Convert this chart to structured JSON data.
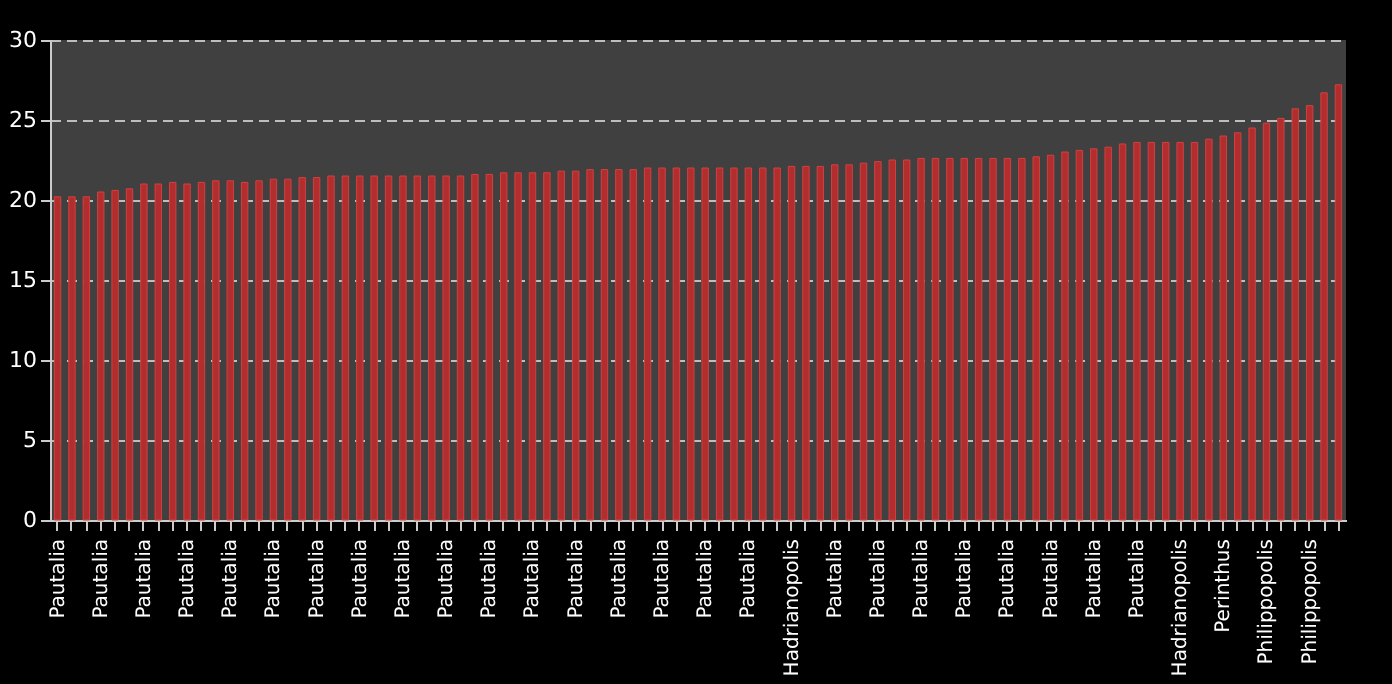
{
  "chart_data": {
    "type": "bar",
    "categories": [
      "Pautalia",
      null,
      null,
      "Pautalia",
      null,
      null,
      "Pautalia",
      null,
      null,
      "Pautalia",
      null,
      null,
      "Pautalia",
      null,
      null,
      "Pautalia",
      null,
      null,
      "Pautalia",
      null,
      null,
      "Pautalia",
      null,
      null,
      "Pautalia",
      null,
      null,
      "Pautalia",
      null,
      null,
      "Pautalia",
      null,
      null,
      "Pautalia",
      null,
      null,
      "Pautalia",
      null,
      null,
      "Pautalia",
      null,
      null,
      "Pautalia",
      null,
      null,
      "Pautalia",
      null,
      null,
      "Pautalia",
      null,
      null,
      "Hadrianopolis",
      null,
      null,
      "Pautalia",
      null,
      null,
      "Pautalia",
      null,
      null,
      "Pautalia",
      null,
      null,
      "Pautalia",
      null,
      null,
      "Pautalia",
      null,
      null,
      "Pautalia",
      null,
      null,
      "Pautalia",
      null,
      null,
      "Pautalia",
      null,
      null,
      "Hadrianopolis",
      null,
      null,
      "Perinthus",
      null,
      null,
      "Philippopolis",
      null,
      null,
      "Philippopolis",
      null,
      null
    ],
    "values": [
      20.2,
      20.2,
      20.2,
      20.5,
      20.6,
      20.7,
      21.0,
      21.0,
      21.1,
      21.0,
      21.1,
      21.2,
      21.2,
      21.1,
      21.2,
      21.3,
      21.3,
      21.4,
      21.4,
      21.5,
      21.5,
      21.5,
      21.5,
      21.5,
      21.5,
      21.5,
      21.5,
      21.5,
      21.5,
      21.6,
      21.6,
      21.7,
      21.7,
      21.7,
      21.7,
      21.8,
      21.8,
      21.9,
      21.9,
      21.9,
      21.9,
      22.0,
      22.0,
      22.0,
      22.0,
      22.0,
      22.0,
      22.0,
      22.0,
      22.0,
      22.0,
      22.1,
      22.1,
      22.1,
      22.2,
      22.2,
      22.3,
      22.4,
      22.5,
      22.5,
      22.6,
      22.6,
      22.6,
      22.6,
      22.6,
      22.6,
      22.6,
      22.6,
      22.7,
      22.8,
      23.0,
      23.1,
      23.2,
      23.3,
      23.5,
      23.6,
      23.6,
      23.6,
      23.6,
      23.6,
      23.8,
      24.0,
      24.2,
      24.5,
      24.8,
      25.1,
      25.7,
      25.9,
      26.7,
      27.2
    ],
    "color": "#b22e2e",
    "ylim": [
      0,
      30
    ],
    "yticks": [
      0,
      5,
      10,
      15,
      20,
      25,
      30
    ],
    "grid": "y"
  }
}
